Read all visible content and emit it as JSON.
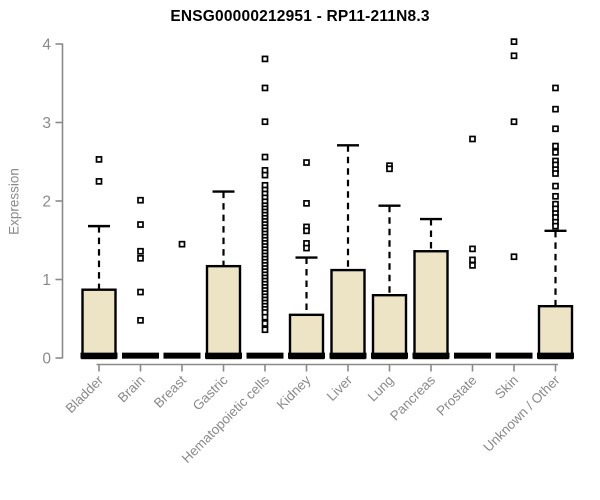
{
  "header": {
    "title": "ENSG00000212951 - RP11-211N8.3"
  },
  "colors": {
    "box_fill": "#EDE4C6",
    "box_stroke": "#000000",
    "median": "#000000",
    "whisker": "#000000",
    "outlier_stroke": "#000000",
    "outlier_fill": "#FFFFFF",
    "axis": "#8a8a8a",
    "tick_label": "#8a8a8a",
    "title": "#000000",
    "background": "#FFFFFF"
  },
  "chart_data": {
    "type": "boxplot",
    "title": "ENSG00000212951 - RP11-211N8.3",
    "xlabel": "",
    "ylabel": "Expression",
    "ylim": [
      0,
      4
    ],
    "yticks": [
      0,
      1,
      2,
      3,
      4
    ],
    "grid": false,
    "legend": false,
    "categories": [
      "Bladder",
      "Brain",
      "Breast",
      "Gastric",
      "Hematopoietic cells",
      "Kidney",
      "Liver",
      "Lung",
      "Pancreas",
      "Prostate",
      "Skin",
      "Unknown / Other"
    ],
    "series": [
      {
        "category": "Bladder",
        "q1": 0,
        "median": 0.03,
        "q3": 0.87,
        "whisker_low": 0,
        "whisker_high": 1.68,
        "outliers": [
          2.53,
          2.25
        ]
      },
      {
        "category": "Brain",
        "q1": 0,
        "median": 0.03,
        "q3": 0.02,
        "whisker_low": 0,
        "whisker_high": 0.02,
        "outliers": [
          2.01,
          1.7,
          1.36,
          1.27,
          0.84,
          0.48
        ]
      },
      {
        "category": "Breast",
        "q1": 0,
        "median": 0.03,
        "q3": 0.02,
        "whisker_low": 0,
        "whisker_high": 0.02,
        "outliers": [
          1.45
        ]
      },
      {
        "category": "Gastric",
        "q1": 0,
        "median": 0.03,
        "q3": 1.17,
        "whisker_low": 0,
        "whisker_high": 2.12,
        "outliers": []
      },
      {
        "category": "Hematopoietic cells",
        "q1": 0,
        "median": 0.03,
        "q3": 0.02,
        "whisker_low": 0,
        "whisker_high": 0.02,
        "outliers": [
          3.81,
          3.44,
          3.01,
          2.56,
          2.39,
          2.33,
          2.2,
          2.14,
          2.09,
          2.04,
          1.99,
          1.94,
          1.9,
          1.86,
          1.82,
          1.78,
          1.74,
          1.7,
          1.66,
          1.62,
          1.58,
          1.54,
          1.5,
          1.46,
          1.42,
          1.38,
          1.34,
          1.3,
          1.26,
          1.22,
          1.18,
          1.14,
          1.1,
          1.06,
          1.02,
          0.98,
          0.94,
          0.9,
          0.86,
          0.82,
          0.78,
          0.74,
          0.7,
          0.66,
          0.62,
          0.58,
          0.52,
          0.44,
          0.36
        ]
      },
      {
        "category": "Kidney",
        "q1": 0,
        "median": 0.03,
        "q3": 0.55,
        "whisker_low": 0,
        "whisker_high": 1.28,
        "outliers": [
          2.49,
          1.97,
          1.67,
          1.62,
          1.46,
          1.4
        ]
      },
      {
        "category": "Liver",
        "q1": 0,
        "median": 0.03,
        "q3": 1.12,
        "whisker_low": 0,
        "whisker_high": 2.71,
        "outliers": []
      },
      {
        "category": "Lung",
        "q1": 0,
        "median": 0.03,
        "q3": 0.8,
        "whisker_low": 0,
        "whisker_high": 1.94,
        "outliers": [
          2.45,
          2.41
        ]
      },
      {
        "category": "Pancreas",
        "q1": 0,
        "median": 0.03,
        "q3": 1.36,
        "whisker_low": 0,
        "whisker_high": 1.77,
        "outliers": []
      },
      {
        "category": "Prostate",
        "q1": 0,
        "median": 0.03,
        "q3": 0.02,
        "whisker_low": 0,
        "whisker_high": 0.02,
        "outliers": [
          2.79,
          1.39,
          1.25,
          1.18
        ]
      },
      {
        "category": "Skin",
        "q1": 0,
        "median": 0.03,
        "q3": 0.02,
        "whisker_low": 0,
        "whisker_high": 0.02,
        "outliers": [
          4.03,
          3.85,
          3.01,
          1.29
        ]
      },
      {
        "category": "Unknown / Other",
        "q1": 0,
        "median": 0.03,
        "q3": 0.66,
        "whisker_low": 0,
        "whisker_high": 1.62,
        "outliers": [
          3.44,
          3.17,
          2.92,
          2.7,
          2.62,
          2.51,
          2.46,
          2.4,
          2.35,
          2.19,
          2.06,
          1.96,
          1.9,
          1.84,
          1.79,
          1.73,
          1.68
        ]
      }
    ]
  }
}
